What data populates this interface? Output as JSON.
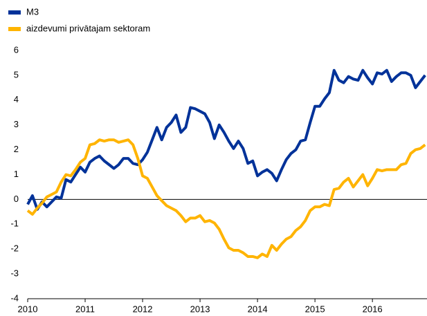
{
  "chart_data": {
    "type": "line",
    "legend": "top-left",
    "x": [
      2010,
      2010.083,
      2010.167,
      2010.25,
      2010.333,
      2010.417,
      2010.5,
      2010.583,
      2010.667,
      2010.75,
      2010.833,
      2010.917,
      2011,
      2011.083,
      2011.167,
      2011.25,
      2011.333,
      2011.417,
      2011.5,
      2011.583,
      2011.667,
      2011.75,
      2011.833,
      2011.917,
      2012,
      2012.083,
      2012.167,
      2012.25,
      2012.333,
      2012.417,
      2012.5,
      2012.583,
      2012.667,
      2012.75,
      2012.833,
      2012.917,
      2013,
      2013.083,
      2013.167,
      2013.25,
      2013.333,
      2013.417,
      2013.5,
      2013.583,
      2013.667,
      2013.75,
      2013.833,
      2013.917,
      2014,
      2014.083,
      2014.167,
      2014.25,
      2014.333,
      2014.417,
      2014.5,
      2014.583,
      2014.667,
      2014.75,
      2014.833,
      2014.917,
      2015,
      2015.083,
      2015.167,
      2015.25,
      2015.333,
      2015.417,
      2015.5,
      2015.583,
      2015.667,
      2015.75,
      2015.833,
      2015.917,
      2016,
      2016.083,
      2016.167,
      2016.25,
      2016.333,
      2016.417,
      2016.5,
      2016.583,
      2016.667,
      2016.75,
      2016.833,
      2016.917
    ],
    "series": [
      {
        "name": "M3",
        "color": "#003299",
        "values": [
          -0.2,
          0.15,
          -0.4,
          -0.1,
          -0.3,
          -0.1,
          0.1,
          0.05,
          0.8,
          0.7,
          1.0,
          1.3,
          1.1,
          1.5,
          1.65,
          1.75,
          1.55,
          1.4,
          1.25,
          1.4,
          1.65,
          1.65,
          1.45,
          1.4,
          1.6,
          1.9,
          2.4,
          2.9,
          2.4,
          2.9,
          3.1,
          3.4,
          2.7,
          2.9,
          3.7,
          3.65,
          3.55,
          3.45,
          3.1,
          2.45,
          3.0,
          2.7,
          2.35,
          2.05,
          2.35,
          2.05,
          1.45,
          1.55,
          0.95,
          1.1,
          1.2,
          1.05,
          0.75,
          1.2,
          1.6,
          1.85,
          2.0,
          2.35,
          2.4,
          3.1,
          3.75,
          3.75,
          4.05,
          4.3,
          5.2,
          4.8,
          4.7,
          4.95,
          4.85,
          4.8,
          5.2,
          4.9,
          4.65,
          5.1,
          5.05,
          5.2,
          4.75,
          4.95,
          5.1,
          5.1,
          5.0,
          4.5,
          4.75,
          5.0
        ]
      },
      {
        "name": "aizdevumi privātajam sektoram",
        "color": "#ffb400",
        "values": [
          -0.45,
          -0.6,
          -0.35,
          -0.15,
          0.1,
          0.2,
          0.3,
          0.7,
          1.0,
          0.95,
          1.2,
          1.5,
          1.65,
          2.2,
          2.25,
          2.4,
          2.35,
          2.4,
          2.4,
          2.3,
          2.35,
          2.4,
          2.2,
          1.65,
          0.95,
          0.85,
          0.5,
          0.15,
          -0.05,
          -0.25,
          -0.35,
          -0.45,
          -0.65,
          -0.9,
          -0.75,
          -0.75,
          -0.65,
          -0.9,
          -0.85,
          -0.95,
          -1.2,
          -1.6,
          -1.95,
          -2.05,
          -2.05,
          -2.15,
          -2.3,
          -2.3,
          -2.35,
          -2.2,
          -2.3,
          -1.85,
          -2.05,
          -1.8,
          -1.6,
          -1.5,
          -1.25,
          -1.1,
          -0.85,
          -0.45,
          -0.3,
          -0.3,
          -0.2,
          -0.25,
          0.4,
          0.45,
          0.7,
          0.85,
          0.5,
          0.75,
          1.0,
          0.55,
          0.85,
          1.2,
          1.15,
          1.2,
          1.2,
          1.2,
          1.4,
          1.45,
          1.85,
          2.0,
          2.05,
          2.2
        ]
      }
    ],
    "xlim": [
      2010,
      2016.95
    ],
    "xticks": [
      2010,
      2011,
      2012,
      2013,
      2014,
      2015,
      2016
    ],
    "ylim": [
      -4,
      6
    ],
    "yticks": [
      -4,
      -3,
      -2,
      -1,
      0,
      1,
      2,
      3,
      4,
      5,
      6
    ]
  }
}
